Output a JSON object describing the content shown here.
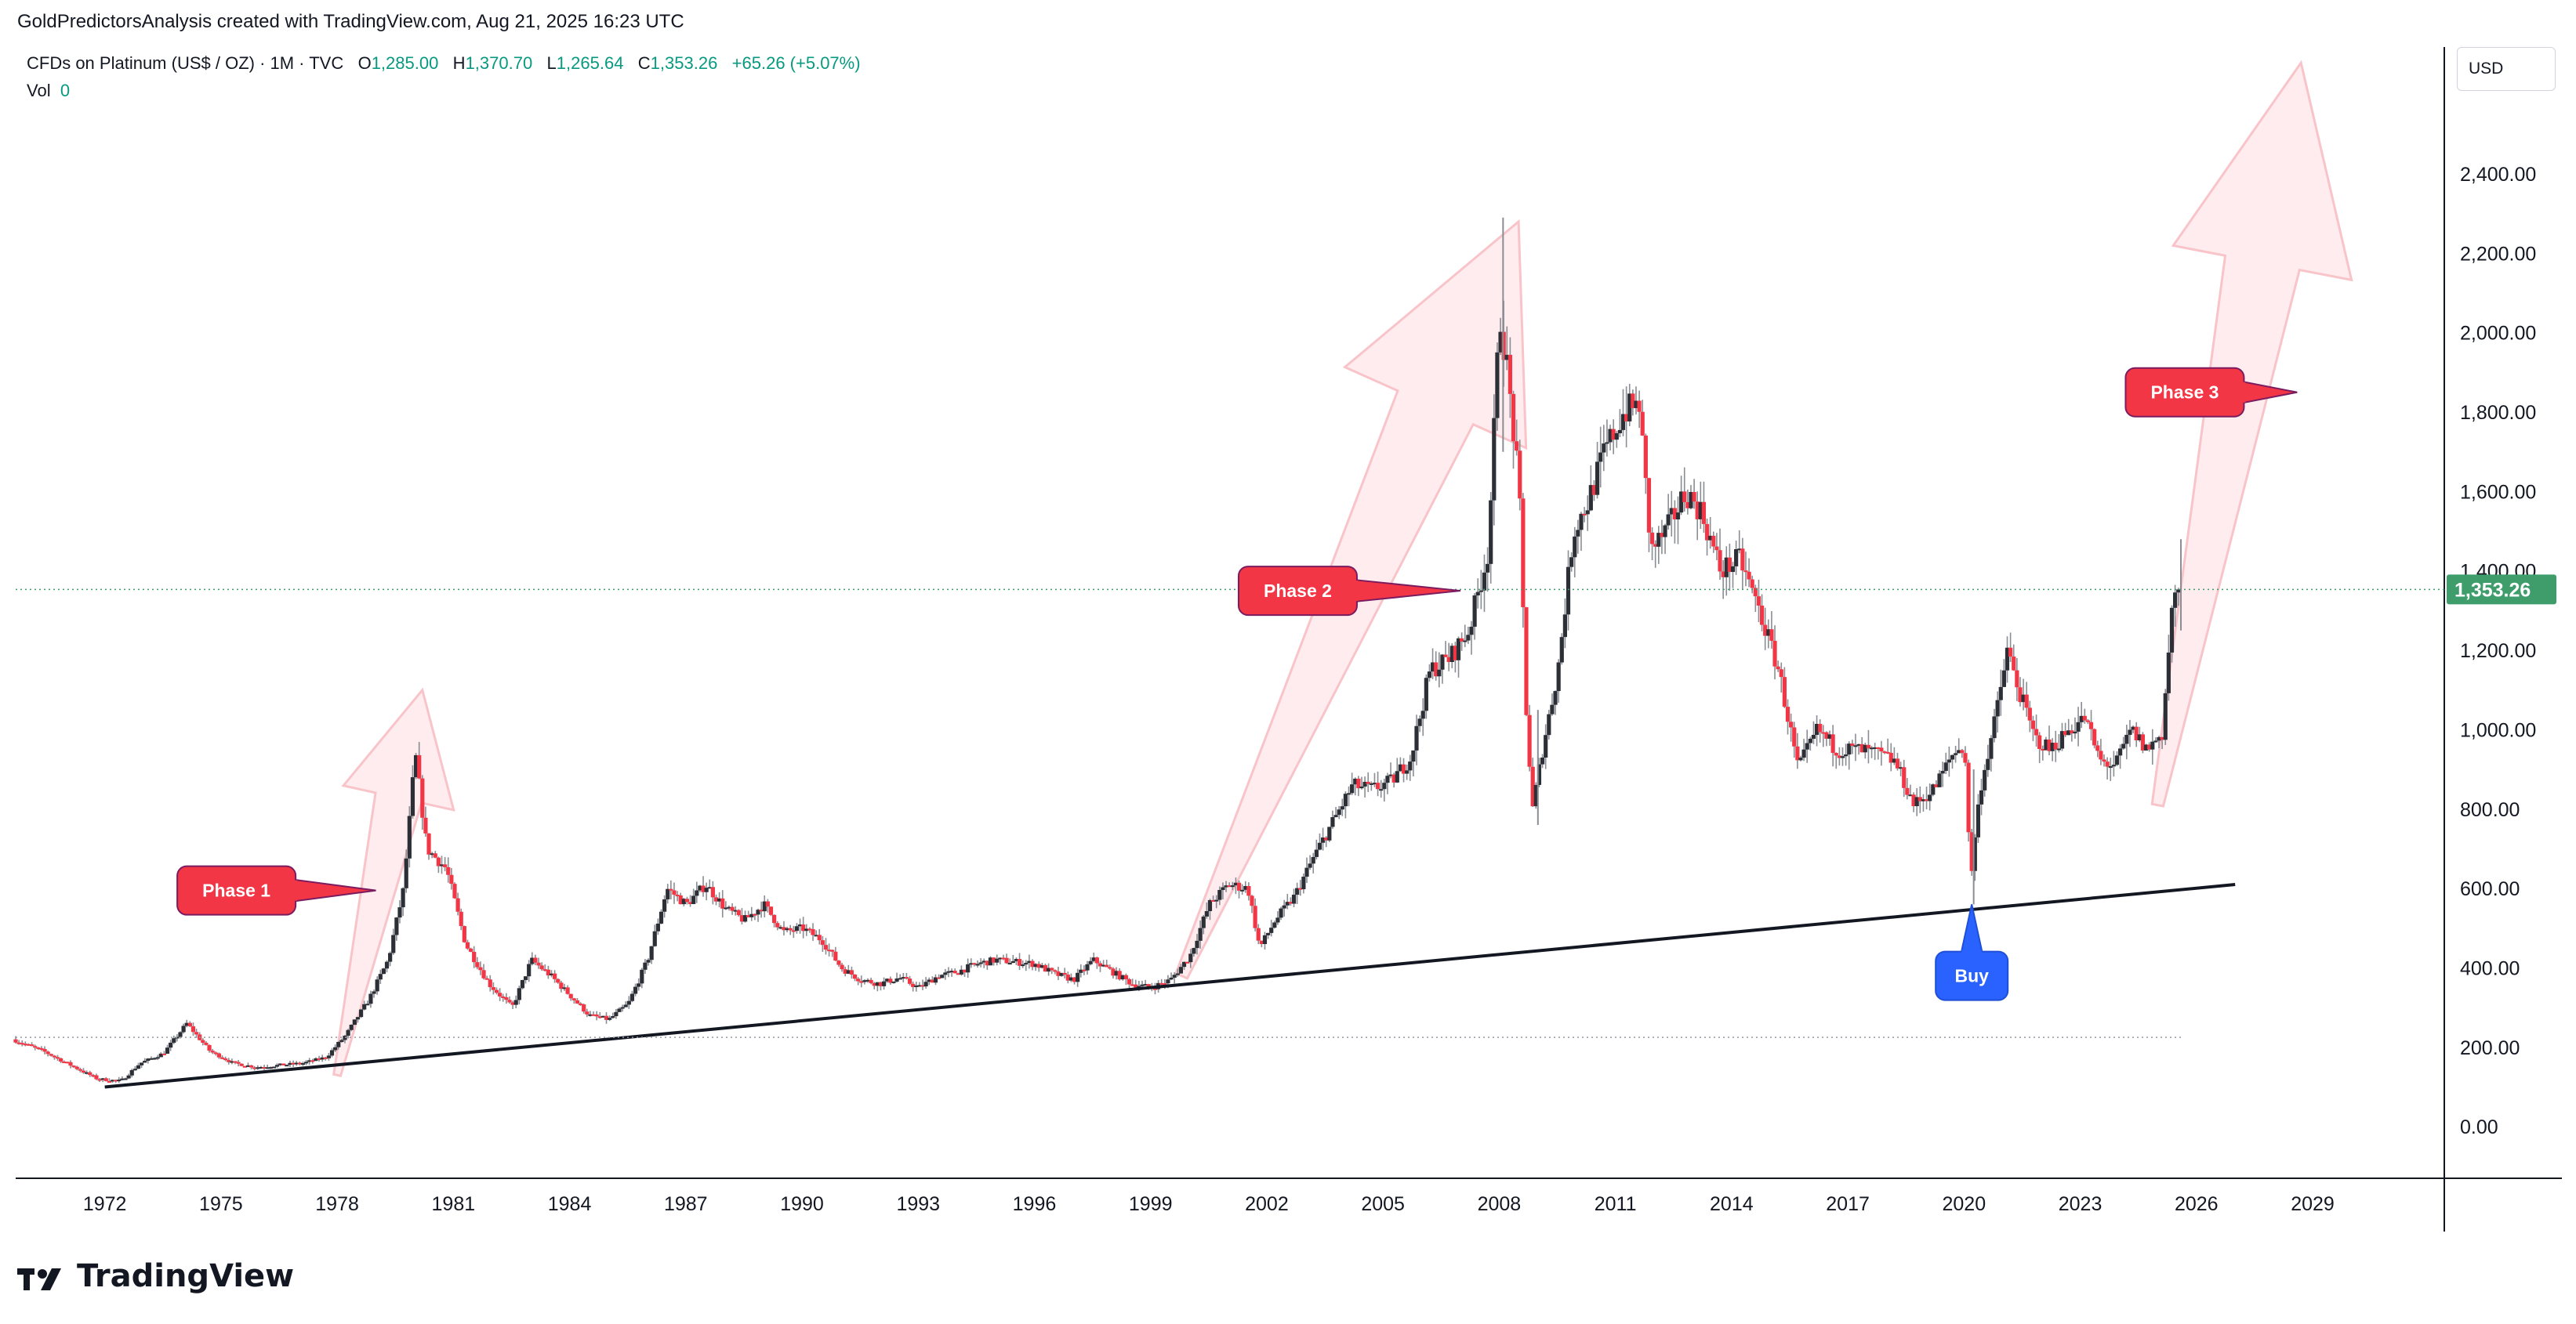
{
  "header": {
    "attribution": "GoldPredictorsAnalysis created with TradingView.com, Aug 21, 2025 16:23 UTC"
  },
  "legend": {
    "symbol": "CFDs on Platinum (US$ / OZ) · 1M · TVC",
    "open_label": "O",
    "open": "1,285.00",
    "high_label": "H",
    "high": "1,370.70",
    "low_label": "L",
    "low": "1,265.64",
    "close_label": "C",
    "close": "1,353.26",
    "change": "+65.26 (+5.07%)",
    "vol_label": "Vol",
    "vol": "0"
  },
  "price_scale": {
    "currency": "USD",
    "last_price_badge": "1,353.26"
  },
  "brand": {
    "name": "TradingView"
  },
  "colors": {
    "up": "#089981",
    "down": "#f23645",
    "candle_body": "#2c2f36",
    "phase_label": "#f23645",
    "buy_label": "#2962ff",
    "arrow_fill": "#fde6e8",
    "arrow_stroke": "#f9c4c9",
    "last_price": "#3e9d6b"
  },
  "chart_data": {
    "type": "candlestick",
    "symbol": "CFDs on Platinum (US$ / OZ)",
    "interval": "1M",
    "y_ticks": [
      0,
      200,
      400,
      600,
      800,
      1000,
      1200,
      1400,
      1600,
      1800,
      2000,
      2200,
      2400
    ],
    "y_tick_labels": [
      "0.00",
      "200.00",
      "400.00",
      "600.00",
      "800.00",
      "1,000.00",
      "1,200.00",
      "1,400.00",
      "1,600.00",
      "1,800.00",
      "2,000.00",
      "2,200.00",
      "2,400.00"
    ],
    "ylim": [
      -130,
      2700
    ],
    "x_ticks": [
      1972,
      1975,
      1978,
      1981,
      1984,
      1987,
      1990,
      1993,
      1996,
      1999,
      2002,
      2005,
      2008,
      2011,
      2014,
      2017,
      2020,
      2023,
      2026,
      2029
    ],
    "xlim": [
      1969.7,
      2032.4
    ],
    "price_path": [
      [
        1969.7,
        220
      ],
      [
        1970.5,
        190
      ],
      [
        1971.3,
        150
      ],
      [
        1971.9,
        120
      ],
      [
        1972.5,
        115
      ],
      [
        1973.0,
        160
      ],
      [
        1973.6,
        185
      ],
      [
        1974.2,
        260
      ],
      [
        1974.8,
        190
      ],
      [
        1975.4,
        160
      ],
      [
        1976.0,
        150
      ],
      [
        1976.6,
        155
      ],
      [
        1977.2,
        160
      ],
      [
        1977.8,
        175
      ],
      [
        1978.3,
        230
      ],
      [
        1978.9,
        320
      ],
      [
        1979.4,
        420
      ],
      [
        1979.8,
        600
      ],
      [
        1980.1,
        940
      ],
      [
        1980.4,
        700
      ],
      [
        1980.9,
        650
      ],
      [
        1981.4,
        460
      ],
      [
        1982.0,
        360
      ],
      [
        1982.6,
        300
      ],
      [
        1983.1,
        420
      ],
      [
        1983.6,
        380
      ],
      [
        1984.1,
        330
      ],
      [
        1984.6,
        280
      ],
      [
        1985.1,
        270
      ],
      [
        1985.6,
        310
      ],
      [
        1986.1,
        420
      ],
      [
        1986.6,
        600
      ],
      [
        1987.1,
        560
      ],
      [
        1987.6,
        610
      ],
      [
        1988.1,
        550
      ],
      [
        1988.6,
        520
      ],
      [
        1989.1,
        560
      ],
      [
        1989.6,
        490
      ],
      [
        1990.1,
        500
      ],
      [
        1990.6,
        470
      ],
      [
        1991.1,
        400
      ],
      [
        1991.6,
        370
      ],
      [
        1992.1,
        360
      ],
      [
        1992.6,
        375
      ],
      [
        1993.1,
        350
      ],
      [
        1993.6,
        380
      ],
      [
        1994.1,
        390
      ],
      [
        1994.6,
        410
      ],
      [
        1995.1,
        420
      ],
      [
        1995.6,
        415
      ],
      [
        1996.1,
        410
      ],
      [
        1996.6,
        385
      ],
      [
        1997.1,
        370
      ],
      [
        1997.6,
        420
      ],
      [
        1998.1,
        390
      ],
      [
        1998.6,
        360
      ],
      [
        1999.1,
        350
      ],
      [
        1999.6,
        370
      ],
      [
        2000.1,
        430
      ],
      [
        2000.6,
        560
      ],
      [
        2001.1,
        610
      ],
      [
        2001.6,
        600
      ],
      [
        2001.9,
        450
      ],
      [
        2002.3,
        520
      ],
      [
        2002.8,
        580
      ],
      [
        2003.3,
        680
      ],
      [
        2003.8,
        770
      ],
      [
        2004.3,
        860
      ],
      [
        2004.8,
        850
      ],
      [
        2005.3,
        870
      ],
      [
        2005.8,
        930
      ],
      [
        2006.3,
        1150
      ],
      [
        2006.8,
        1180
      ],
      [
        2007.3,
        1250
      ],
      [
        2007.8,
        1450
      ],
      [
        2008.1,
        2050
      ],
      [
        2008.3,
        1900
      ],
      [
        2008.6,
        1600
      ],
      [
        2008.8,
        1000
      ],
      [
        2008.95,
        800
      ],
      [
        2009.2,
        950
      ],
      [
        2009.6,
        1150
      ],
      [
        2010.0,
        1500
      ],
      [
        2010.4,
        1580
      ],
      [
        2010.8,
        1700
      ],
      [
        2011.3,
        1800
      ],
      [
        2011.7,
        1820
      ],
      [
        2012.0,
        1450
      ],
      [
        2012.4,
        1500
      ],
      [
        2012.9,
        1600
      ],
      [
        2013.3,
        1550
      ],
      [
        2013.8,
        1400
      ],
      [
        2014.3,
        1430
      ],
      [
        2014.8,
        1300
      ],
      [
        2015.3,
        1150
      ],
      [
        2015.8,
        900
      ],
      [
        2016.3,
        1000
      ],
      [
        2016.8,
        950
      ],
      [
        2017.3,
        950
      ],
      [
        2017.8,
        940
      ],
      [
        2018.3,
        920
      ],
      [
        2018.8,
        810
      ],
      [
        2019.3,
        850
      ],
      [
        2019.8,
        940
      ],
      [
        2020.1,
        960
      ],
      [
        2020.25,
        620
      ],
      [
        2020.5,
        850
      ],
      [
        2020.9,
        1030
      ],
      [
        2021.2,
        1200
      ],
      [
        2021.5,
        1100
      ],
      [
        2021.9,
        980
      ],
      [
        2022.3,
        950
      ],
      [
        2022.8,
        1000
      ],
      [
        2023.2,
        1030
      ],
      [
        2023.6,
        920
      ],
      [
        2024.0,
        910
      ],
      [
        2024.4,
        1000
      ],
      [
        2024.8,
        950
      ],
      [
        2025.2,
        990
      ],
      [
        2025.45,
        1300
      ],
      [
        2025.6,
        1353
      ]
    ],
    "support_line": {
      "x1": 1972.0,
      "y1": 100,
      "x2": 2027.0,
      "y2": 610
    },
    "baseline_dotted": {
      "y": 225,
      "x_from": 1969.7,
      "x_to": 2025.6
    },
    "last_price": 1353.26,
    "annotations": [
      {
        "type": "callout",
        "text": "Phase 1",
        "x": 1975.4,
        "y": 595,
        "tip_x": 1979.0,
        "tip_y": 595,
        "color": "red"
      },
      {
        "type": "callout",
        "text": "Phase 2",
        "x": 2002.8,
        "y": 1350,
        "tip_x": 2007.0,
        "tip_y": 1350,
        "color": "red"
      },
      {
        "type": "callout",
        "text": "Phase 3",
        "x": 2025.7,
        "y": 1850,
        "tip_x": 2028.6,
        "tip_y": 1850,
        "color": "red"
      },
      {
        "type": "callout_up",
        "text": "Buy",
        "x": 2020.2,
        "y": 380,
        "tip_x": 2020.2,
        "tip_y": 560,
        "color": "blue"
      }
    ],
    "arrows": [
      {
        "from": [
          1978.0,
          130
        ],
        "to": [
          1980.2,
          1100
        ]
      },
      {
        "from": [
          1999.8,
          380
        ],
        "to": [
          2008.5,
          2280
        ]
      },
      {
        "from": [
          2025.0,
          810
        ],
        "to": [
          2028.7,
          2680
        ]
      }
    ]
  }
}
